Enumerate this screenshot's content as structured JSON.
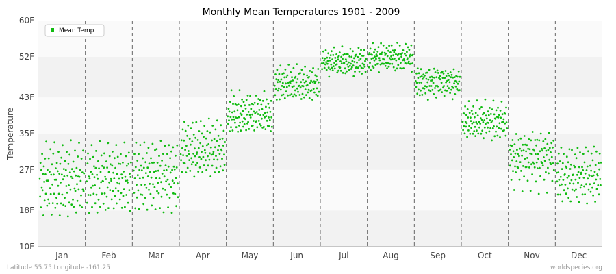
{
  "chart_data": {
    "type": "scatter",
    "title": "Monthly Mean Temperatures 1901 - 2009",
    "xlabel": "",
    "ylabel": "Temperature",
    "yticks": [
      "10F",
      "18F",
      "27F",
      "35F",
      "43F",
      "52F",
      "60F"
    ],
    "ytick_values": [
      10,
      18,
      27,
      35,
      43,
      52,
      60
    ],
    "ylim": [
      10,
      60
    ],
    "categories": [
      "Jan",
      "Feb",
      "Mar",
      "Apr",
      "May",
      "Jun",
      "Jul",
      "Aug",
      "Sep",
      "Oct",
      "Nov",
      "Dec"
    ],
    "legend": {
      "position": "top-left",
      "entries": [
        "Mean Temp"
      ]
    },
    "grid": {
      "horizontal_bands": true,
      "vertical_month_dividers": "dashed"
    },
    "series": [
      {
        "name": "Mean Temp",
        "color": "#11bb11",
        "points_per_month": 109,
        "values_by_month": {
          "Jan": [
            25,
            21,
            29,
            19,
            27,
            23,
            31,
            22,
            26,
            17,
            28,
            24,
            20,
            30,
            26,
            22,
            33,
            25,
            19,
            27
          ],
          "Feb": [
            24,
            20,
            28,
            31,
            22,
            26,
            18,
            25,
            29,
            21,
            27,
            23,
            33,
            19,
            26,
            24,
            30,
            22,
            28,
            25
          ],
          "Mar": [
            27,
            22,
            30,
            25,
            19,
            28,
            33,
            24,
            21,
            29,
            26,
            23,
            31,
            18,
            27,
            25,
            32,
            22,
            28,
            24
          ],
          "Apr": [
            31,
            29,
            34,
            27,
            32,
            36,
            30,
            28,
            33,
            38,
            29,
            31,
            35,
            26,
            32,
            30,
            34,
            28,
            37,
            31
          ],
          "May": [
            39,
            37,
            41,
            38,
            40,
            36,
            42,
            39,
            37,
            44,
            38,
            40,
            36,
            41,
            39,
            43,
            38,
            40,
            37,
            42
          ],
          "Jun": [
            46,
            44,
            48,
            45,
            47,
            43,
            49,
            46,
            44,
            47,
            45,
            48,
            43,
            46,
            50,
            45,
            47,
            44,
            46,
            48
          ],
          "Jul": [
            51,
            49,
            52,
            50,
            53,
            50,
            51,
            49,
            52,
            50,
            54,
            51,
            49,
            52,
            50,
            51,
            53,
            50,
            48,
            52
          ],
          "Aug": [
            52,
            50,
            53,
            51,
            54,
            49,
            52,
            51,
            53,
            50,
            55,
            52,
            50,
            53,
            51,
            52,
            54,
            50,
            51,
            53
          ],
          "Sep": [
            47,
            45,
            48,
            46,
            44,
            49,
            47,
            45,
            48,
            46,
            43,
            47,
            45,
            49,
            46,
            48,
            44,
            47,
            45,
            48
          ],
          "Oct": [
            38,
            36,
            40,
            37,
            39,
            35,
            41,
            38,
            36,
            39,
            37,
            34,
            40,
            38,
            36,
            42,
            37,
            39,
            35,
            38
          ],
          "Nov": [
            31,
            28,
            33,
            30,
            25,
            32,
            29,
            34,
            27,
            31,
            30,
            22,
            33,
            28,
            31,
            26,
            35,
            29,
            32,
            28
          ],
          "Dec": [
            26,
            24,
            28,
            22,
            27,
            30,
            25,
            23,
            29,
            21,
            26,
            32,
            24,
            27,
            20,
            28,
            25,
            31,
            23,
            26
          ]
        }
      }
    ]
  },
  "footer": {
    "left": "Latitude 55.75 Longitude -161.25",
    "right": "worldspecies.org"
  },
  "colors": {
    "point": "#11bb11",
    "band_dark": "#f2f2f2",
    "band_light": "#fafafa",
    "divider": "#666666",
    "axis": "#999999"
  }
}
